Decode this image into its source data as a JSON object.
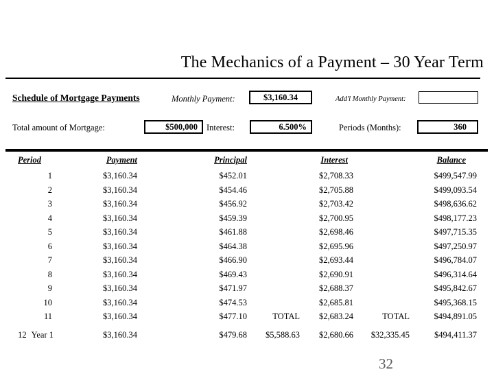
{
  "slide": {
    "title": "The Mechanics of a Payment – 30 Year Term",
    "page_number": "32"
  },
  "colors": {
    "ink": "#000000",
    "page_number": "#595959"
  },
  "form": {
    "schedule_heading": "Schedule of Mortgage Payments",
    "monthly_payment_label": "Monthly Payment:",
    "monthly_payment_value": "$3,160.34",
    "addl_monthly_payment_label": "Add'l Monthly Payment:",
    "addl_monthly_payment_value": "",
    "total_mortgage_label": "Total amount of Mortgage:",
    "total_mortgage_value": "$500,000",
    "interest_label": "Interest:",
    "interest_value": "6.500%",
    "periods_label": "Periods (Months):",
    "periods_value": "360"
  },
  "table": {
    "headers": [
      "Period",
      "Payment",
      "Principal",
      "Interest",
      "Balance"
    ],
    "total_label": "TOTAL",
    "rows": [
      {
        "period": "1",
        "payment": "$3,160.34",
        "principal": "$452.01",
        "principal_total": "",
        "interest": "$2,708.33",
        "interest_total": "",
        "balance": "$499,547.99"
      },
      {
        "period": "2",
        "payment": "$3,160.34",
        "principal": "$454.46",
        "principal_total": "",
        "interest": "$2,705.88",
        "interest_total": "",
        "balance": "$499,093.54"
      },
      {
        "period": "3",
        "payment": "$3,160.34",
        "principal": "$456.92",
        "principal_total": "",
        "interest": "$2,703.42",
        "interest_total": "",
        "balance": "$498,636.62"
      },
      {
        "period": "4",
        "payment": "$3,160.34",
        "principal": "$459.39",
        "principal_total": "",
        "interest": "$2,700.95",
        "interest_total": "",
        "balance": "$498,177.23"
      },
      {
        "period": "5",
        "payment": "$3,160.34",
        "principal": "$461.88",
        "principal_total": "",
        "interest": "$2,698.46",
        "interest_total": "",
        "balance": "$497,715.35"
      },
      {
        "period": "6",
        "payment": "$3,160.34",
        "principal": "$464.38",
        "principal_total": "",
        "interest": "$2,695.96",
        "interest_total": "",
        "balance": "$497,250.97"
      },
      {
        "period": "7",
        "payment": "$3,160.34",
        "principal": "$466.90",
        "principal_total": "",
        "interest": "$2,693.44",
        "interest_total": "",
        "balance": "$496,784.07"
      },
      {
        "period": "8",
        "payment": "$3,160.34",
        "principal": "$469.43",
        "principal_total": "",
        "interest": "$2,690.91",
        "interest_total": "",
        "balance": "$496,314.64"
      },
      {
        "period": "9",
        "payment": "$3,160.34",
        "principal": "$471.97",
        "principal_total": "",
        "interest": "$2,688.37",
        "interest_total": "",
        "balance": "$495,842.67"
      },
      {
        "period": "10",
        "payment": "$3,160.34",
        "principal": "$474.53",
        "principal_total": "",
        "interest": "$2,685.81",
        "interest_total": "",
        "balance": "$495,368.15"
      },
      {
        "period": "11",
        "payment": "$3,160.34",
        "principal": "$477.10",
        "principal_total": "TOTAL",
        "interest": "$2,683.24",
        "interest_total": "TOTAL",
        "balance": "$494,891.05"
      },
      {
        "period": "12",
        "period_suffix": "Year 1",
        "payment": "$3,160.34",
        "principal": "$479.68",
        "principal_total": "$5,588.63",
        "interest": "$2,680.66",
        "interest_total": "$32,335.45",
        "balance": "$494,411.37"
      }
    ]
  }
}
